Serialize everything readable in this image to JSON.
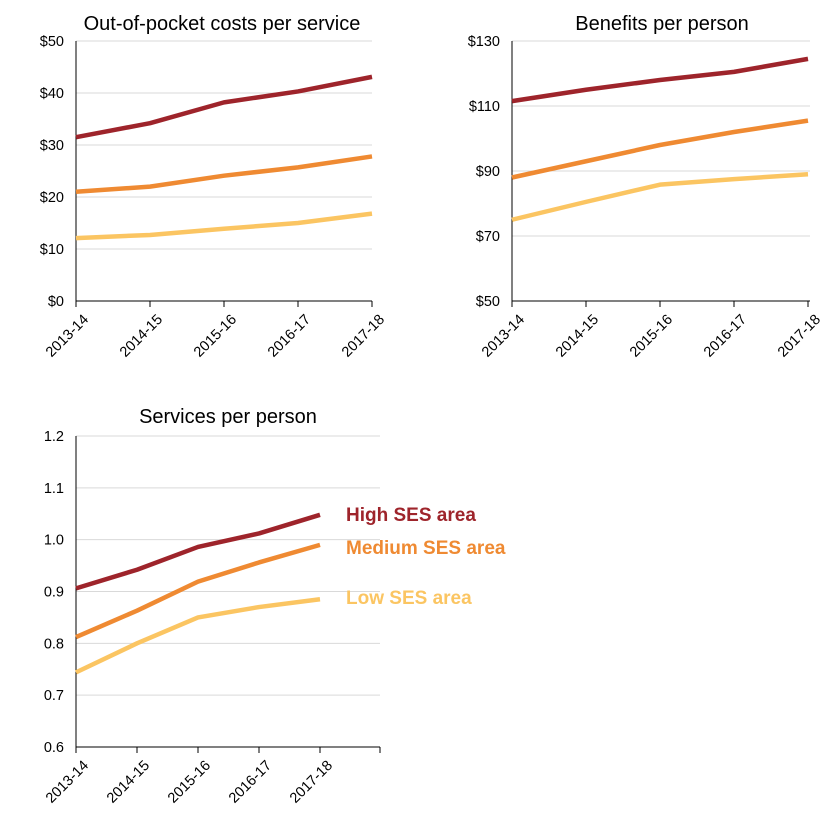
{
  "palette": {
    "high": "#9e242b",
    "medium": "#ef8a32",
    "low": "#fbc562"
  },
  "chart_data": [
    {
      "type": "line",
      "title": "Out-of-pocket costs per service",
      "categories": [
        "2013-14",
        "2014-15",
        "2015-16",
        "2016-17",
        "2017-18"
      ],
      "ylim": [
        0,
        50
      ],
      "yticks": [
        0,
        10,
        20,
        30,
        40,
        50
      ],
      "ytick_labels": [
        "$0",
        "$10",
        "$20",
        "$30",
        "$40",
        "$50"
      ],
      "grid": true,
      "series": [
        {
          "key": "high",
          "values": [
            31.5,
            34.2,
            38.2,
            40.3,
            43.1
          ]
        },
        {
          "key": "medium",
          "values": [
            21.0,
            22.0,
            24.1,
            25.7,
            27.8
          ]
        },
        {
          "key": "low",
          "values": [
            12.1,
            12.7,
            13.9,
            15.0,
            16.8
          ]
        }
      ]
    },
    {
      "type": "line",
      "title": "Benefits per person",
      "categories": [
        "2013-14",
        "2014-15",
        "2015-16",
        "2016-17",
        "2017-18"
      ],
      "ylim": [
        50,
        130
      ],
      "yticks": [
        50,
        70,
        90,
        110,
        130
      ],
      "ytick_labels": [
        "$50",
        "$70",
        "$90",
        "$110",
        "$130"
      ],
      "grid": true,
      "series": [
        {
          "key": "high",
          "values": [
            111.5,
            115.0,
            118.0,
            120.5,
            124.5
          ]
        },
        {
          "key": "medium",
          "values": [
            88.0,
            93.0,
            98.0,
            102.0,
            105.5
          ]
        },
        {
          "key": "low",
          "values": [
            75.0,
            80.5,
            85.8,
            87.5,
            89.0
          ]
        }
      ]
    },
    {
      "type": "line",
      "title": "Services per person",
      "categories": [
        "2013-14",
        "2014-15",
        "2015-16",
        "2016-17",
        "2017-18"
      ],
      "ylim": [
        0.6,
        1.2
      ],
      "yticks": [
        0.6,
        0.7,
        0.8,
        0.9,
        1.0,
        1.1,
        1.2
      ],
      "ytick_labels": [
        "0.6",
        "0.7",
        "0.8",
        "0.9",
        "1.0",
        "1.1",
        "1.2"
      ],
      "grid": true,
      "legend_position": "right",
      "series": [
        {
          "name": "High SES area",
          "key": "high",
          "values": [
            0.906,
            0.942,
            0.986,
            1.012,
            1.048
          ]
        },
        {
          "name": "Medium SES area",
          "key": "medium",
          "values": [
            0.812,
            0.863,
            0.919,
            0.956,
            0.99
          ]
        },
        {
          "name": "Low SES area",
          "key": "low",
          "values": [
            0.744,
            0.8,
            0.85,
            0.87,
            0.885
          ]
        }
      ]
    }
  ]
}
